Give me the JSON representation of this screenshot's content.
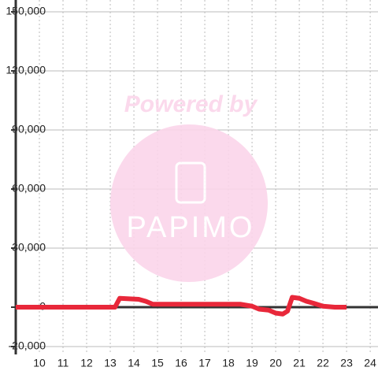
{
  "chart_data": {
    "type": "line",
    "x": [
      9,
      13.2,
      13.4,
      14.2,
      14.5,
      14.8,
      15,
      18.5,
      19,
      19.3,
      19.7,
      20,
      20.3,
      20.5,
      20.7,
      21,
      21.3,
      21.6,
      22,
      22.5,
      23
    ],
    "series": [
      {
        "color": "#e8283a",
        "values": [
          0,
          0,
          4500,
          4000,
          3000,
          1500,
          1500,
          1500,
          500,
          -1000,
          -1500,
          -3000,
          -3500,
          -2000,
          5000,
          4500,
          3000,
          2000,
          500,
          0,
          0
        ]
      }
    ],
    "xlim": [
      9,
      24.33
    ],
    "xticks": [
      10,
      11,
      12,
      13,
      14,
      15,
      16,
      17,
      18,
      19,
      20,
      21,
      22,
      23,
      24
    ],
    "ylim": [
      -24000,
      156000
    ],
    "yticks": [
      {
        "value": -20000,
        "label": "-20,000"
      },
      {
        "value": 0,
        "label": "0"
      },
      {
        "value": 30000,
        "label": "30,000"
      },
      {
        "value": 60000,
        "label": "60,000"
      },
      {
        "value": 90000,
        "label": "90,000"
      },
      {
        "value": 120000,
        "label": "120,000"
      },
      {
        "value": 150000,
        "label": "150,000"
      }
    ],
    "grid": true,
    "watermark": {
      "line1": "Powered by",
      "line2": "PAPIMO"
    }
  }
}
